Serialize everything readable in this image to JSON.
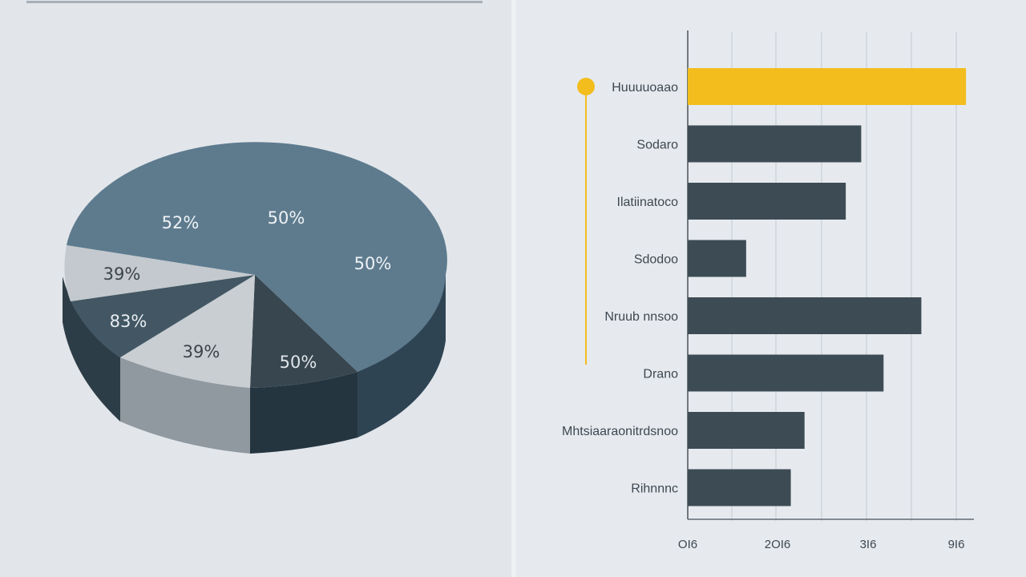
{
  "colors": {
    "highlight": "#f2bd1d",
    "bar": "#3d4b54",
    "pie_top": "#5e7b8e",
    "pie_side": "#2f4453",
    "axis": "#4a525a",
    "grid": "#cfd5db",
    "label": "#3e474f"
  },
  "chart_data": [
    {
      "type": "pie",
      "style": "3d",
      "slices": [
        {
          "label": "50%",
          "value": 50
        },
        {
          "label": "50%",
          "value": 50
        },
        {
          "label": "50%",
          "value": 50
        },
        {
          "label": "52%",
          "value": 52
        },
        {
          "label": "39%",
          "value": 39
        },
        {
          "label": "83%",
          "value": 83
        },
        {
          "label": "39%",
          "value": 39
        }
      ]
    },
    {
      "type": "bar",
      "orientation": "horizontal",
      "categories": [
        "Huuuuoaao",
        "Sodaro",
        "Ilatiinatoco",
        "Sdodoo",
        "Nruub nnsoo",
        "Drano",
        "Mhtsiaaraonitrdsnoo",
        "Rihnnnc"
      ],
      "values": [
        8.1,
        5.05,
        4.6,
        1.7,
        6.8,
        5.7,
        3.4,
        3.0
      ],
      "highlight_index": 0,
      "xlim": [
        0,
        9.1
      ],
      "x_ticks": [
        {
          "label": "OI6",
          "value": 0
        },
        {
          "label": "2OI6",
          "value": 2.6
        },
        {
          "label": "3I6",
          "value": 5.2
        },
        {
          "label": "9I6",
          "value": 7.8
        }
      ],
      "grid": true,
      "marker_line": true
    }
  ]
}
